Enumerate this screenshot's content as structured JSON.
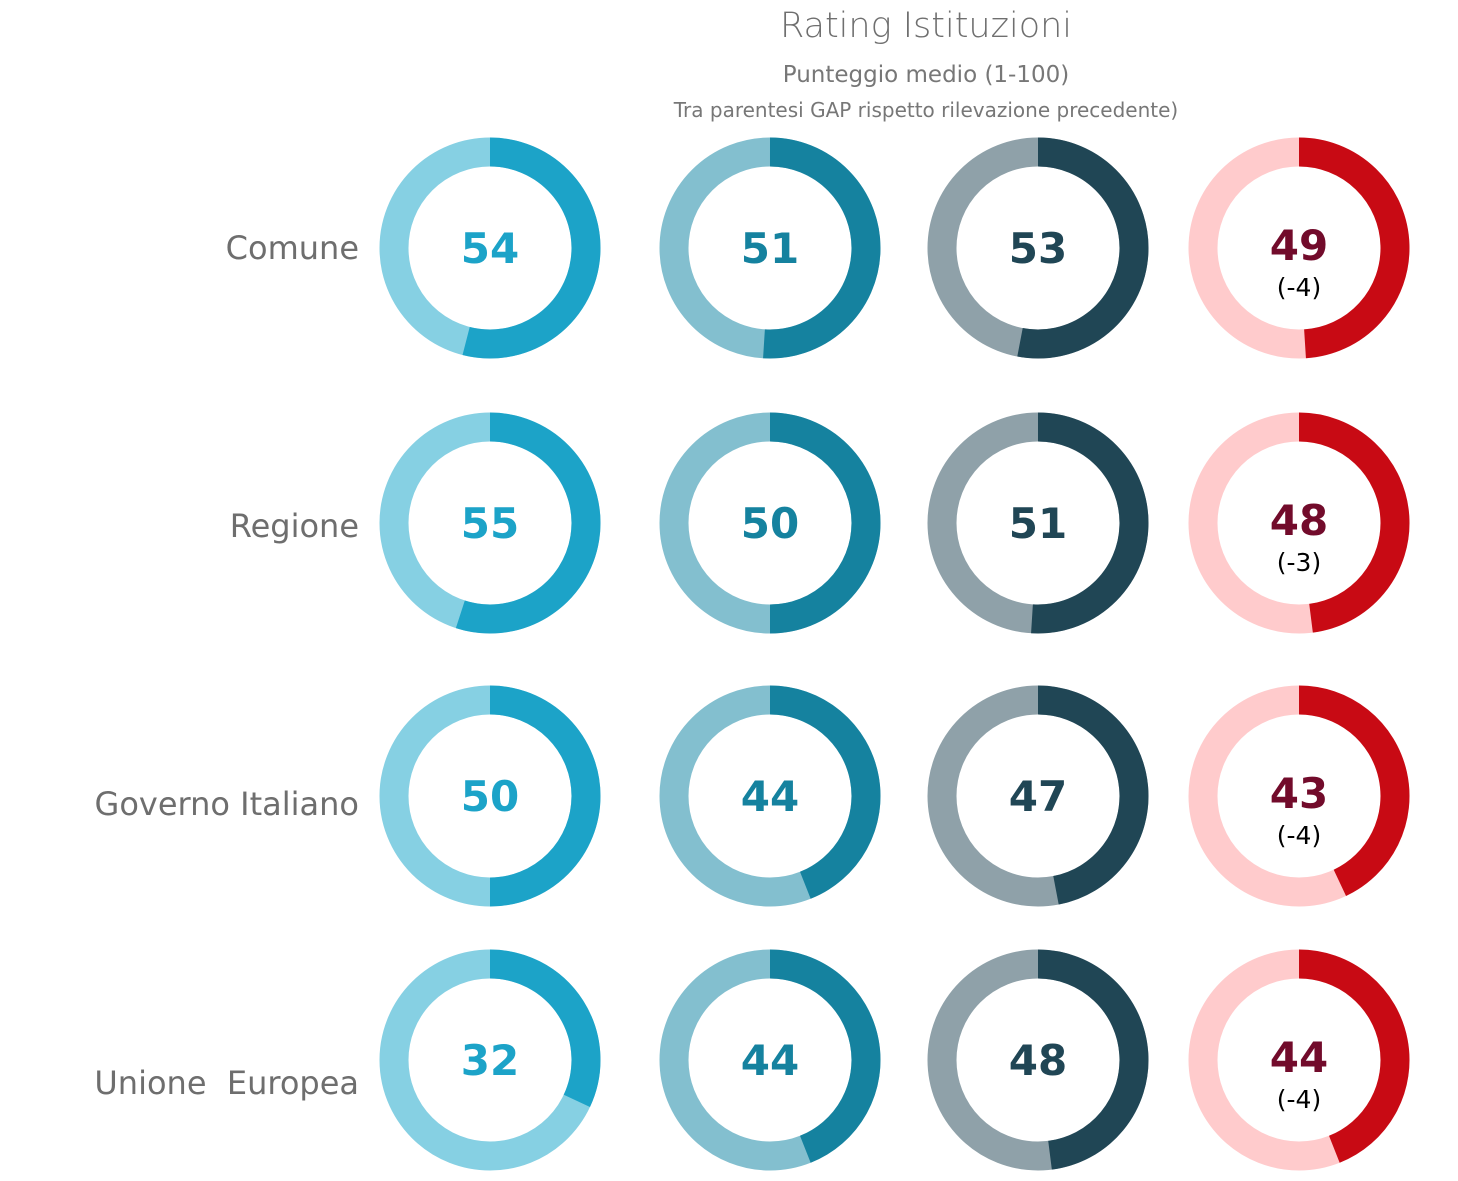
{
  "chart_data": {
    "type": "donut-grid",
    "title": "Rating Istituzioni",
    "subtitle": "Punteggio  medio (1-100)",
    "subtitle2": "Tra parentesi GAP rispetto rilevazione precedente)",
    "scale": [
      0,
      100
    ],
    "rows": [
      "Comune",
      "Regione",
      "Governo Italiano",
      "Unione  Europea"
    ],
    "series": [
      {
        "name": "series-1",
        "colors": {
          "fill": "#1ca3c8",
          "track": "#86d0e3",
          "text": "#1ca3c8"
        },
        "values": [
          54,
          55,
          50,
          32
        ]
      },
      {
        "name": "series-2",
        "colors": {
          "fill": "#15829f",
          "track": "#83bfcf",
          "text": "#15829f"
        },
        "values": [
          51,
          50,
          44,
          44
        ]
      },
      {
        "name": "series-3",
        "colors": {
          "fill": "#204655",
          "track": "#8fa1a9",
          "text": "#204655"
        },
        "values": [
          53,
          51,
          47,
          48
        ]
      },
      {
        "name": "series-4",
        "colors": {
          "fill": "#c80a14",
          "track": "#ffcbcc",
          "text": "#720b2b",
          "gap_text": "#000000"
        },
        "values": [
          49,
          48,
          43,
          44
        ],
        "gaps": [
          "(-4)",
          "(-3)",
          "(-4)",
          "(-4)"
        ]
      }
    ]
  }
}
